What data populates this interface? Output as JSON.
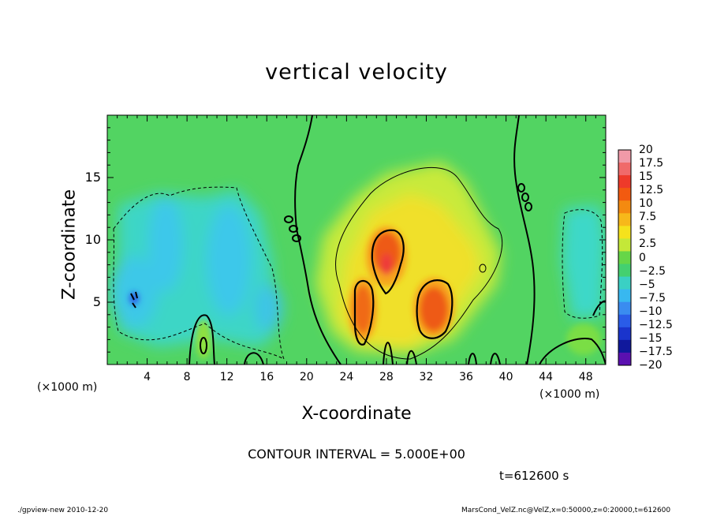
{
  "chart_data": {
    "type": "heatmap",
    "title": "vertical velocity",
    "xlabel": "X-coordinate",
    "ylabel": "Z-coordinate",
    "x_unit_label": "(×1000 m)",
    "xlim": [
      0,
      50
    ],
    "ylim": [
      0,
      20
    ],
    "xticks": [
      "4",
      "8",
      "12",
      "16",
      "20",
      "24",
      "28",
      "32",
      "36",
      "40",
      "44",
      "48"
    ],
    "xtick_values": [
      4,
      8,
      12,
      16,
      20,
      24,
      28,
      32,
      36,
      40,
      44,
      48
    ],
    "yticks": [
      "5",
      "10",
      "15"
    ],
    "ytick_values": [
      5,
      10,
      15
    ],
    "colorbar": {
      "labels": [
        "20",
        "17.5",
        "15",
        "12.5",
        "10",
        "7.5",
        "5",
        "2.5",
        "0",
        "−2.5",
        "−5",
        "−7.5",
        "−10",
        "−12.5",
        "−15",
        "−17.5",
        "−20"
      ],
      "values": [
        20,
        17.5,
        15,
        12.5,
        10,
        7.5,
        5,
        2.5,
        0,
        -2.5,
        -5,
        -7.5,
        -10,
        -12.5,
        -15,
        -17.5,
        -20
      ],
      "colors": [
        "#f09aa8",
        "#f06a6a",
        "#ee3a2a",
        "#f25a10",
        "#f48a10",
        "#f7b81a",
        "#f5e21c",
        "#c4e838",
        "#66d648",
        "#44d070",
        "#3ad0c4",
        "#38b8f0",
        "#3a8cf0",
        "#2a5ce8",
        "#1a34cc",
        "#10189c",
        "#5a10b0"
      ]
    },
    "features": [
      {
        "kind": "updraft",
        "x": 28.2,
        "z": 8.4,
        "value": 14
      },
      {
        "kind": "updraft",
        "x": 32.4,
        "z": 4.5,
        "value": 12
      },
      {
        "kind": "updraft",
        "x": 25.8,
        "z": 4.8,
        "value": 11
      },
      {
        "kind": "updraft",
        "x": 29.5,
        "z": 13.5,
        "value": 4
      },
      {
        "kind": "downdraft",
        "x": 3.0,
        "z": 5.5,
        "value": -10
      },
      {
        "kind": "downdraft",
        "x": 8.5,
        "z": 9.0,
        "value": -6
      },
      {
        "kind": "downdraft",
        "x": 15.5,
        "z": 8.0,
        "value": -6
      },
      {
        "kind": "downdraft",
        "x": 47.5,
        "z": 8.0,
        "value": -4
      }
    ]
  },
  "annotations": {
    "contour_interval": "CONTOUR INTERVAL = 5.000E+00",
    "time": "t=612600 s",
    "footer_left": "./gpview-new  2010-12-20",
    "footer_right": "MarsCond_VelZ.nc@VelZ,x=0:50000,z=0:20000,t=612600"
  }
}
